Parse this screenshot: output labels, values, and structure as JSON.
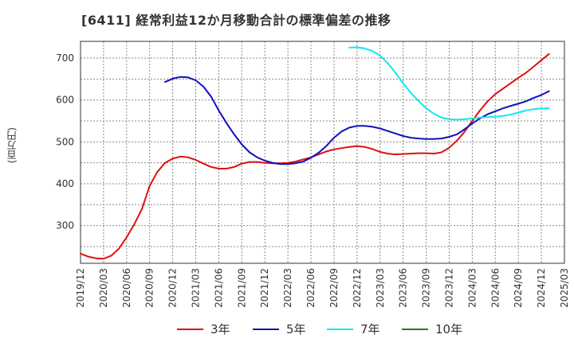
{
  "title": "[6411]  経常利益12か月移動合計の標準偏差の推移",
  "chart_data": {
    "type": "line",
    "ylabel": "(百万円)",
    "xlabel": "",
    "ylim": [
      210,
      740
    ],
    "yticks": [
      300,
      400,
      500,
      600,
      700
    ],
    "xticks": [
      "2019/12",
      "2020/03",
      "2020/06",
      "2020/09",
      "2020/12",
      "2021/03",
      "2021/06",
      "2021/09",
      "2021/12",
      "2022/03",
      "2022/06",
      "2022/09",
      "2022/12",
      "2023/03",
      "2023/06",
      "2023/09",
      "2023/12",
      "2024/03",
      "2024/06",
      "2024/09",
      "2024/12",
      "2025/03"
    ],
    "grid": true,
    "legend_position": "bottom",
    "series": [
      {
        "name": "3年",
        "color": "#e01010",
        "points": [
          [
            "2019/12",
            233
          ],
          [
            "2020/01",
            226
          ],
          [
            "2020/02",
            222
          ],
          [
            "2020/03",
            221
          ],
          [
            "2020/04",
            228
          ],
          [
            "2020/05",
            245
          ],
          [
            "2020/06",
            272
          ],
          [
            "2020/07",
            303
          ],
          [
            "2020/08",
            340
          ],
          [
            "2020/09",
            395
          ],
          [
            "2020/10",
            428
          ],
          [
            "2020/11",
            450
          ],
          [
            "2020/12",
            460
          ],
          [
            "2021/01",
            465
          ],
          [
            "2021/02",
            463
          ],
          [
            "2021/03",
            457
          ],
          [
            "2021/04",
            448
          ],
          [
            "2021/05",
            440
          ],
          [
            "2021/06",
            436
          ],
          [
            "2021/07",
            436
          ],
          [
            "2021/08",
            440
          ],
          [
            "2021/09",
            448
          ],
          [
            "2021/10",
            452
          ],
          [
            "2021/11",
            452
          ],
          [
            "2021/12",
            450
          ],
          [
            "2022/01",
            449
          ],
          [
            "2022/02",
            449
          ],
          [
            "2022/03",
            450
          ],
          [
            "2022/04",
            453
          ],
          [
            "2022/05",
            458
          ],
          [
            "2022/06",
            463
          ],
          [
            "2022/07",
            470
          ],
          [
            "2022/08",
            477
          ],
          [
            "2022/09",
            482
          ],
          [
            "2022/10",
            485
          ],
          [
            "2022/11",
            488
          ],
          [
            "2022/12",
            490
          ],
          [
            "2023/01",
            488
          ],
          [
            "2023/02",
            483
          ],
          [
            "2023/03",
            476
          ],
          [
            "2023/04",
            472
          ],
          [
            "2023/05",
            470
          ],
          [
            "2023/06",
            471
          ],
          [
            "2023/07",
            472
          ],
          [
            "2023/08",
            473
          ],
          [
            "2023/09",
            473
          ],
          [
            "2023/10",
            472
          ],
          [
            "2023/11",
            475
          ],
          [
            "2023/12",
            486
          ],
          [
            "2024/01",
            503
          ],
          [
            "2024/02",
            524
          ],
          [
            "2024/03",
            550
          ],
          [
            "2024/04",
            575
          ],
          [
            "2024/05",
            597
          ],
          [
            "2024/06",
            614
          ],
          [
            "2024/07",
            627
          ],
          [
            "2024/08",
            640
          ],
          [
            "2024/09",
            653
          ],
          [
            "2024/10",
            665
          ],
          [
            "2024/11",
            680
          ],
          [
            "2024/12",
            695
          ],
          [
            "2025/01",
            710
          ]
        ]
      },
      {
        "name": "5年",
        "color": "#1010c0",
        "points": [
          [
            "2020/11",
            643
          ],
          [
            "2020/12",
            651
          ],
          [
            "2021/01",
            655
          ],
          [
            "2021/02",
            654
          ],
          [
            "2021/03",
            647
          ],
          [
            "2021/04",
            632
          ],
          [
            "2021/05",
            608
          ],
          [
            "2021/06",
            575
          ],
          [
            "2021/07",
            545
          ],
          [
            "2021/08",
            518
          ],
          [
            "2021/09",
            494
          ],
          [
            "2021/10",
            475
          ],
          [
            "2021/11",
            463
          ],
          [
            "2021/12",
            455
          ],
          [
            "2022/01",
            450
          ],
          [
            "2022/02",
            447
          ],
          [
            "2022/03",
            447
          ],
          [
            "2022/04",
            449
          ],
          [
            "2022/05",
            453
          ],
          [
            "2022/06",
            462
          ],
          [
            "2022/07",
            474
          ],
          [
            "2022/08",
            490
          ],
          [
            "2022/09",
            510
          ],
          [
            "2022/10",
            525
          ],
          [
            "2022/11",
            534
          ],
          [
            "2022/12",
            538
          ],
          [
            "2023/01",
            538
          ],
          [
            "2023/02",
            536
          ],
          [
            "2023/03",
            532
          ],
          [
            "2023/04",
            526
          ],
          [
            "2023/05",
            520
          ],
          [
            "2023/06",
            514
          ],
          [
            "2023/07",
            510
          ],
          [
            "2023/08",
            508
          ],
          [
            "2023/09",
            507
          ],
          [
            "2023/10",
            507
          ],
          [
            "2023/11",
            508
          ],
          [
            "2023/12",
            512
          ],
          [
            "2024/01",
            518
          ],
          [
            "2024/02",
            530
          ],
          [
            "2024/03",
            544
          ],
          [
            "2024/04",
            556
          ],
          [
            "2024/05",
            566
          ],
          [
            "2024/06",
            573
          ],
          [
            "2024/07",
            580
          ],
          [
            "2024/08",
            586
          ],
          [
            "2024/09",
            591
          ],
          [
            "2024/10",
            597
          ],
          [
            "2024/11",
            605
          ],
          [
            "2024/12",
            612
          ],
          [
            "2025/01",
            621
          ]
        ]
      },
      {
        "name": "7年",
        "color": "#10e8f0",
        "points": [
          [
            "2022/11",
            725
          ],
          [
            "2022/12",
            726
          ],
          [
            "2023/01",
            723
          ],
          [
            "2023/02",
            717
          ],
          [
            "2023/03",
            706
          ],
          [
            "2023/04",
            688
          ],
          [
            "2023/05",
            665
          ],
          [
            "2023/06",
            640
          ],
          [
            "2023/07",
            617
          ],
          [
            "2023/08",
            598
          ],
          [
            "2023/09",
            580
          ],
          [
            "2023/10",
            567
          ],
          [
            "2023/11",
            558
          ],
          [
            "2023/12",
            554
          ],
          [
            "2024/01",
            553
          ],
          [
            "2024/02",
            554
          ],
          [
            "2024/03",
            556
          ],
          [
            "2024/04",
            558
          ],
          [
            "2024/05",
            559
          ],
          [
            "2024/06",
            560
          ],
          [
            "2024/07",
            562
          ],
          [
            "2024/08",
            565
          ],
          [
            "2024/09",
            570
          ],
          [
            "2024/10",
            575
          ],
          [
            "2024/11",
            578
          ],
          [
            "2024/12",
            580
          ],
          [
            "2025/01",
            580
          ]
        ]
      },
      {
        "name": "10年",
        "color": "#208020",
        "points": []
      }
    ]
  }
}
